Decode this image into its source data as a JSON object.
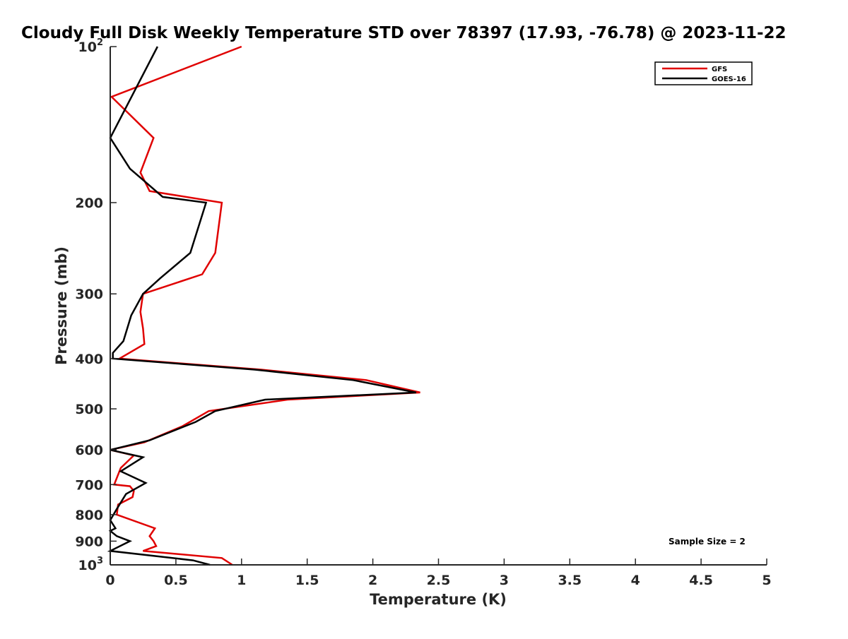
{
  "chart_data": {
    "type": "line",
    "title": "Cloudy Full Disk Weekly Temperature STD over 78397 (17.93, -76.78) @ 2023-11-22",
    "xlabel": "Temperature (K)",
    "ylabel": "Pressure (mb)",
    "xlim": [
      0,
      5
    ],
    "ylim": [
      100,
      1000
    ],
    "yscale": "log",
    "y_reversed": true,
    "x_ticks": [
      "0",
      "0.5",
      "1",
      "1.5",
      "2",
      "2.5",
      "3",
      "3.5",
      "4",
      "4.5",
      "5"
    ],
    "x_tick_values": [
      0,
      0.5,
      1,
      1.5,
      2,
      2.5,
      3,
      3.5,
      4,
      4.5,
      5
    ],
    "y_ticks": [
      {
        "value": 100,
        "base": "10",
        "exp": "2"
      },
      {
        "value": 200,
        "label": "200"
      },
      {
        "value": 300,
        "label": "300"
      },
      {
        "value": 400,
        "label": "400"
      },
      {
        "value": 500,
        "label": "500"
      },
      {
        "value": 600,
        "label": "600"
      },
      {
        "value": 700,
        "label": "700"
      },
      {
        "value": 800,
        "label": "800"
      },
      {
        "value": 900,
        "label": "900"
      },
      {
        "value": 1000,
        "base": "10",
        "exp": "3"
      }
    ],
    "grid": false,
    "legend_position": "top-right",
    "annotation": "Sample Size = 2",
    "series": [
      {
        "name": "GFS",
        "color": "#e00000",
        "points": [
          [
            1.0,
            100
          ],
          [
            0.01,
            125
          ],
          [
            0.33,
            150
          ],
          [
            0.23,
            175
          ],
          [
            0.3,
            190
          ],
          [
            0.85,
            200
          ],
          [
            0.8,
            250
          ],
          [
            0.7,
            275
          ],
          [
            0.25,
            300
          ],
          [
            0.23,
            325
          ],
          [
            0.25,
            350
          ],
          [
            0.26,
            375
          ],
          [
            0.07,
            400
          ],
          [
            1.15,
            420
          ],
          [
            1.95,
            440
          ],
          [
            2.36,
            465
          ],
          [
            1.35,
            480
          ],
          [
            0.75,
            505
          ],
          [
            0.55,
            540
          ],
          [
            0.26,
            580
          ],
          [
            0.0,
            600
          ],
          [
            0.18,
            615
          ],
          [
            0.08,
            650
          ],
          [
            0.03,
            700
          ],
          [
            0.15,
            705
          ],
          [
            0.18,
            720
          ],
          [
            0.17,
            740
          ],
          [
            0.06,
            765
          ],
          [
            0.05,
            800
          ],
          [
            0.34,
            850
          ],
          [
            0.3,
            880
          ],
          [
            0.33,
            900
          ],
          [
            0.35,
            920
          ],
          [
            0.25,
            940
          ],
          [
            0.85,
            970
          ],
          [
            0.93,
            1000
          ]
        ]
      },
      {
        "name": "GOES-16",
        "color": "#000000",
        "points": [
          [
            0.36,
            100
          ],
          [
            0.0,
            150
          ],
          [
            0.15,
            172
          ],
          [
            0.4,
            195
          ],
          [
            0.73,
            200
          ],
          [
            0.61,
            250
          ],
          [
            0.38,
            280
          ],
          [
            0.25,
            300
          ],
          [
            0.16,
            330
          ],
          [
            0.1,
            370
          ],
          [
            0.02,
            390
          ],
          [
            0.02,
            400
          ],
          [
            1.1,
            420
          ],
          [
            1.85,
            440
          ],
          [
            2.33,
            465
          ],
          [
            1.18,
            480
          ],
          [
            0.8,
            505
          ],
          [
            0.65,
            530
          ],
          [
            0.3,
            575
          ],
          [
            0.0,
            600
          ],
          [
            0.25,
            620
          ],
          [
            0.08,
            660
          ],
          [
            0.27,
            695
          ],
          [
            0.12,
            730
          ],
          [
            0.05,
            780
          ],
          [
            0.0,
            820
          ],
          [
            0.04,
            850
          ],
          [
            0.0,
            860
          ],
          [
            0.05,
            880
          ],
          [
            0.15,
            900
          ],
          [
            0.0,
            940
          ],
          [
            0.63,
            980
          ],
          [
            0.76,
            1000
          ]
        ]
      }
    ]
  }
}
